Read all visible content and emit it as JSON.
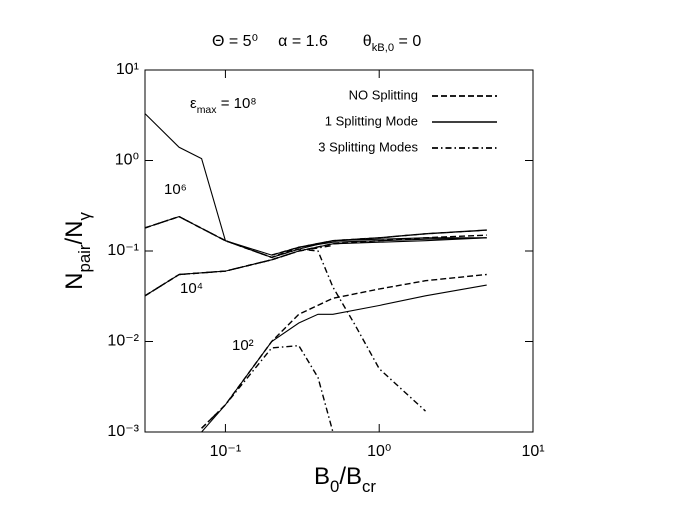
{
  "chart_data": {
    "type": "line",
    "top_labels": [
      [
        "Θ = 5⁰"
      ],
      [
        "α = 1.6"
      ],
      [
        "θ",
        "kB,0",
        " = 0"
      ]
    ],
    "xlabel": [
      "B",
      "0",
      "/B",
      "cr"
    ],
    "ylabel": [
      "N",
      "pair",
      "/N",
      "γ"
    ],
    "log_x": true,
    "log_y": true,
    "xlim": [
      0.03,
      10
    ],
    "ylim": [
      0.001,
      10
    ],
    "xticks": [
      {
        "value": 0.1,
        "label": "10⁻¹"
      },
      {
        "value": 1,
        "label": "10⁰"
      },
      {
        "value": 10,
        "label": "10¹"
      }
    ],
    "yticks": [
      {
        "value": 0.001,
        "label": "10⁻³"
      },
      {
        "value": 0.01,
        "label": "10⁻²"
      },
      {
        "value": 0.1,
        "label": "10⁻¹"
      },
      {
        "value": 1,
        "label": "10⁰"
      },
      {
        "value": 10,
        "label": "10¹"
      }
    ],
    "annotations": [
      [
        "ε",
        "max",
        " = 10⁸"
      ],
      [
        "10⁶"
      ],
      [
        "10⁴"
      ],
      [
        "10²"
      ]
    ],
    "series": [
      {
        "name": "NO Splitting",
        "dash": "dashed",
        "color": "#000",
        "curves": [
          {
            "x": [
              0.2,
              0.3,
              0.5,
              1,
              2,
              5
            ],
            "values": [
              0.09,
              0.11,
              0.13,
              0.14,
              0.155,
              0.17
            ]
          },
          {
            "x": [
              0.03,
              0.05,
              0.1,
              0.2,
              0.3,
              0.5,
              1,
              2,
              5
            ],
            "values": [
              0.18,
              0.24,
              0.13,
              0.085,
              0.11,
              0.13,
              0.14,
              0.155,
              0.17
            ]
          },
          {
            "x": [
              0.03,
              0.05,
              0.1,
              0.2,
              0.3,
              0.5,
              1,
              2,
              5
            ],
            "values": [
              0.032,
              0.055,
              0.06,
              0.08,
              0.1,
              0.12,
              0.13,
              0.14,
              0.15
            ]
          },
          {
            "x": [
              0.07,
              0.1,
              0.2,
              0.3,
              0.5,
              1,
              2,
              5
            ],
            "values": [
              0.0011,
              0.002,
              0.01,
              0.02,
              0.03,
              0.038,
              0.047,
              0.055
            ]
          }
        ]
      },
      {
        "name": "1 Splitting Mode",
        "dash": "solid",
        "color": "#000",
        "curves": [
          {
            "x": [
              0.03,
              0.05,
              0.07,
              0.1,
              0.2,
              0.3,
              0.5,
              1,
              2,
              5
            ],
            "values": [
              3.3,
              1.4,
              1.05,
              0.13,
              0.09,
              0.11,
              0.125,
              0.13,
              0.135,
              0.14
            ]
          },
          {
            "x": [
              0.03,
              0.05,
              0.1,
              0.2,
              0.3,
              0.5,
              1,
              2,
              5
            ],
            "values": [
              0.18,
              0.24,
              0.13,
              0.085,
              0.105,
              0.13,
              0.135,
              0.14,
              0.14
            ]
          },
          {
            "x": [
              0.03,
              0.05,
              0.1,
              0.2,
              0.3,
              0.5,
              1,
              2,
              5
            ],
            "values": [
              0.032,
              0.055,
              0.06,
              0.08,
              0.1,
              0.12,
              0.125,
              0.13,
              0.14
            ]
          },
          {
            "x": [
              0.07,
              0.1,
              0.2,
              0.3,
              0.4,
              0.5,
              1,
              2,
              5
            ],
            "values": [
              0.001,
              0.002,
              0.01,
              0.016,
              0.02,
              0.02,
              0.025,
              0.032,
              0.042
            ]
          }
        ]
      },
      {
        "name": "3 Splitting Modes",
        "dash": "dashdot",
        "color": "#000",
        "curves": [
          {
            "x": [
              0.03,
              0.05,
              0.1,
              0.2,
              0.3,
              0.4,
              0.5,
              0.7,
              1,
              2
            ],
            "values": [
              0.18,
              0.24,
              0.13,
              0.085,
              0.105,
              0.1,
              0.04,
              0.015,
              0.005,
              0.0017
            ]
          },
          {
            "x": [
              0.03,
              0.05,
              0.1,
              0.2,
              0.3,
              0.5
            ],
            "values": [
              0.032,
              0.055,
              0.06,
              0.08,
              0.1,
              0.115
            ]
          },
          {
            "x": [
              0.07,
              0.1,
              0.2,
              0.3,
              0.4,
              0.5
            ],
            "values": [
              0.0011,
              0.002,
              0.0085,
              0.009,
              0.004,
              0.001
            ]
          }
        ]
      }
    ]
  }
}
